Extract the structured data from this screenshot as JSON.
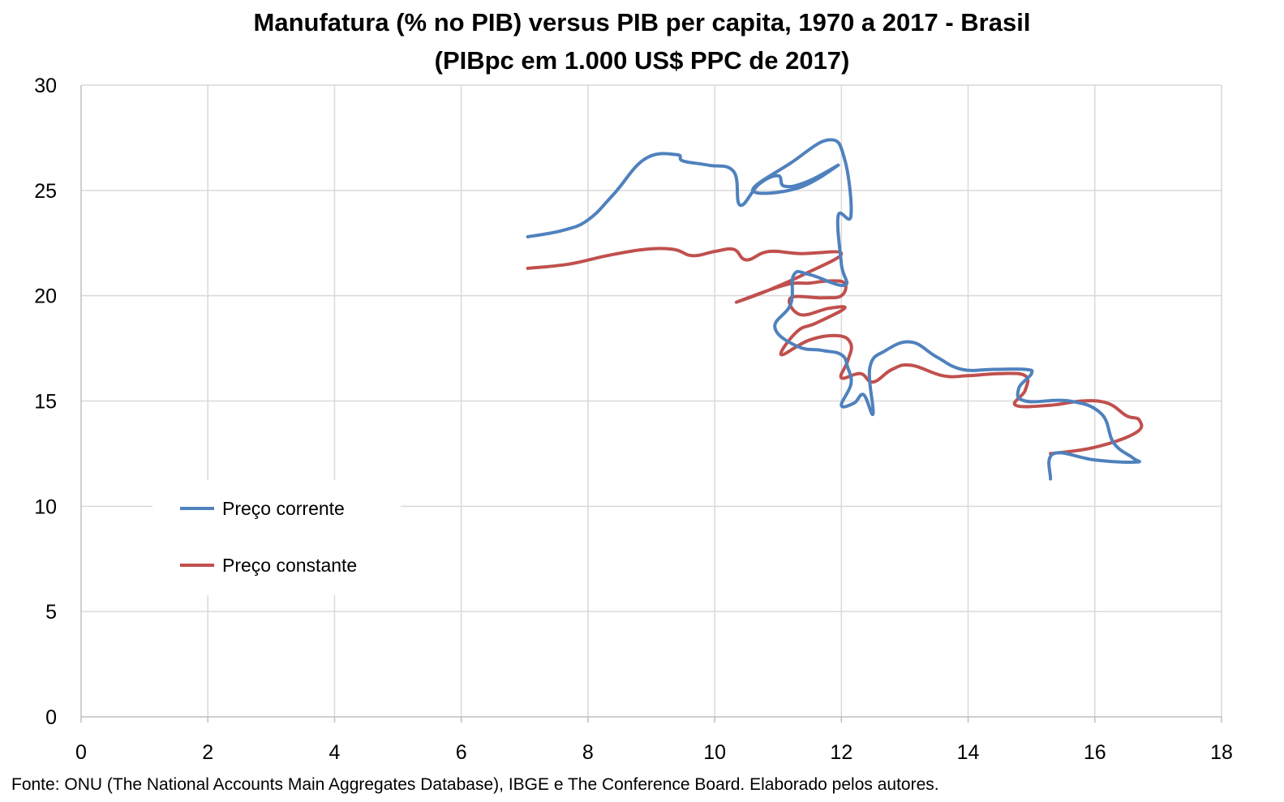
{
  "chart_data": {
    "type": "line",
    "title": "Manufatura (% no PIB) versus PIB per capita, 1970 a 2017 - Brasil",
    "subtitle": "(PIBpc em 1.000 US$ PPC de 2017)",
    "source": "Fonte: ONU (The National Accounts Main Aggregates Database), IBGE e The Conference Board. Elaborado pelos autores.",
    "xlim": [
      0,
      18
    ],
    "ylim": [
      0,
      30
    ],
    "x_ticks": [
      "0",
      "2",
      "4",
      "6",
      "8",
      "10",
      "12",
      "14",
      "16",
      "18"
    ],
    "y_ticks": [
      "0",
      "5",
      "10",
      "15",
      "20",
      "25",
      "30"
    ],
    "grid": true,
    "legend_position": "left",
    "series": [
      {
        "name": "Preço corrente",
        "color": "#4f81bd",
        "points": [
          [
            7.05,
            22.8
          ],
          [
            7.6,
            23.1
          ],
          [
            8.0,
            23.6
          ],
          [
            8.4,
            24.8
          ],
          [
            8.9,
            26.5
          ],
          [
            9.4,
            26.7
          ],
          [
            9.5,
            26.4
          ],
          [
            9.9,
            26.2
          ],
          [
            10.3,
            25.9
          ],
          [
            10.4,
            24.3
          ],
          [
            10.7,
            25.3
          ],
          [
            11.0,
            25.7
          ],
          [
            11.1,
            25.2
          ],
          [
            11.45,
            25.4
          ],
          [
            11.95,
            26.2
          ],
          [
            11.3,
            25.1
          ],
          [
            10.6,
            25.0
          ],
          [
            11.2,
            26.3
          ],
          [
            11.8,
            27.4
          ],
          [
            12.05,
            26.5
          ],
          [
            12.15,
            23.8
          ],
          [
            11.95,
            23.8
          ],
          [
            12.0,
            21.5
          ],
          [
            12.05,
            20.5
          ],
          [
            11.5,
            21.0
          ],
          [
            11.25,
            21.0
          ],
          [
            11.2,
            19.6
          ],
          [
            10.95,
            18.5
          ],
          [
            11.3,
            17.6
          ],
          [
            11.7,
            17.4
          ],
          [
            12.0,
            17.2
          ],
          [
            12.1,
            16.6
          ],
          [
            12.15,
            15.8
          ],
          [
            12.0,
            14.8
          ],
          [
            12.2,
            14.9
          ],
          [
            12.35,
            15.3
          ],
          [
            12.5,
            14.4
          ],
          [
            12.45,
            16.6
          ],
          [
            12.7,
            17.4
          ],
          [
            13.1,
            17.8
          ],
          [
            13.5,
            17.1
          ],
          [
            13.9,
            16.5
          ],
          [
            14.4,
            16.5
          ],
          [
            14.9,
            16.5
          ],
          [
            15.0,
            16.3
          ],
          [
            14.8,
            15.6
          ],
          [
            14.9,
            15.0
          ],
          [
            15.6,
            15.0
          ],
          [
            16.1,
            14.4
          ],
          [
            16.3,
            13.0
          ],
          [
            16.6,
            12.3
          ],
          [
            16.65,
            12.1
          ],
          [
            16.0,
            12.2
          ],
          [
            15.35,
            12.5
          ],
          [
            15.3,
            11.3
          ]
        ]
      },
      {
        "name": "Preço constante",
        "color": "#c0504d",
        "points": [
          [
            7.05,
            21.3
          ],
          [
            7.7,
            21.5
          ],
          [
            8.3,
            21.9
          ],
          [
            8.9,
            22.2
          ],
          [
            9.35,
            22.2
          ],
          [
            9.65,
            21.9
          ],
          [
            10.0,
            22.1
          ],
          [
            10.3,
            22.2
          ],
          [
            10.5,
            21.7
          ],
          [
            10.85,
            22.1
          ],
          [
            11.35,
            22.0
          ],
          [
            12.0,
            22.0
          ],
          [
            11.4,
            21.0
          ],
          [
            10.8,
            20.2
          ],
          [
            10.35,
            19.7
          ],
          [
            11.1,
            20.5
          ],
          [
            11.5,
            20.6
          ],
          [
            11.8,
            20.7
          ],
          [
            12.05,
            20.6
          ],
          [
            12.0,
            20.0
          ],
          [
            11.7,
            19.9
          ],
          [
            11.2,
            19.9
          ],
          [
            11.35,
            19.1
          ],
          [
            11.8,
            19.4
          ],
          [
            12.05,
            19.4
          ],
          [
            11.6,
            18.7
          ],
          [
            11.3,
            18.3
          ],
          [
            11.05,
            17.2
          ],
          [
            11.5,
            17.9
          ],
          [
            11.95,
            18.1
          ],
          [
            12.15,
            17.7
          ],
          [
            12.1,
            16.9
          ],
          [
            12.0,
            16.1
          ],
          [
            12.3,
            16.3
          ],
          [
            12.5,
            15.9
          ],
          [
            12.8,
            16.5
          ],
          [
            13.1,
            16.7
          ],
          [
            13.6,
            16.2
          ],
          [
            14.0,
            16.2
          ],
          [
            14.5,
            16.3
          ],
          [
            14.9,
            16.2
          ],
          [
            14.9,
            15.5
          ],
          [
            14.75,
            14.8
          ],
          [
            15.3,
            14.8
          ],
          [
            15.8,
            15.0
          ],
          [
            16.2,
            14.9
          ],
          [
            16.5,
            14.3
          ],
          [
            16.7,
            14.1
          ],
          [
            16.65,
            13.5
          ],
          [
            16.0,
            12.8
          ],
          [
            15.3,
            12.5
          ]
        ]
      }
    ]
  }
}
